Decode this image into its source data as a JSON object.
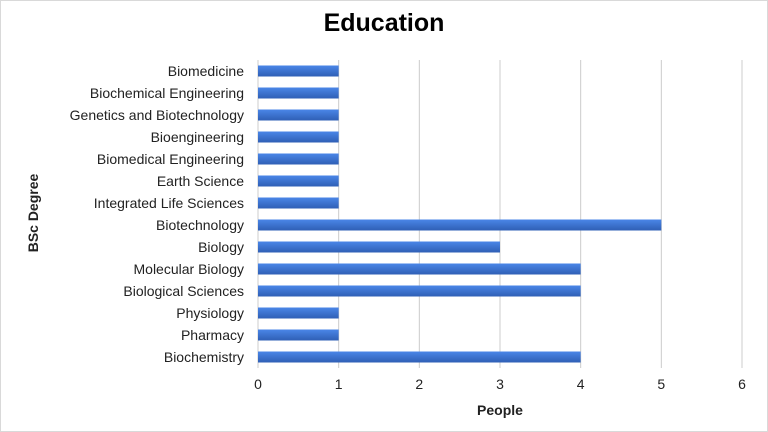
{
  "chart_data": {
    "type": "bar",
    "orientation": "horizontal",
    "title": "Education",
    "xlabel": "People",
    "ylabel": "BSc Degree",
    "categories": [
      "Biomedicine",
      "Biochemical Engineering",
      "Genetics and Biotechnology",
      "Bioengineering",
      "Biomedical Engineering",
      "Earth Science",
      "Integrated Life Sciences",
      "Biotechnology",
      "Biology",
      "Molecular Biology",
      "Biological Sciences",
      "Physiology",
      "Pharmacy",
      "Biochemistry"
    ],
    "values": [
      1,
      1,
      1,
      1,
      1,
      1,
      1,
      5,
      3,
      4,
      4,
      1,
      1,
      4
    ],
    "xlim": [
      0,
      6
    ],
    "xticks": [
      "0",
      "1",
      "2",
      "3",
      "4",
      "5",
      "6"
    ],
    "grid": true,
    "bar_color": "#4a86e8",
    "bar_shade_color": "#2f5fb5"
  }
}
